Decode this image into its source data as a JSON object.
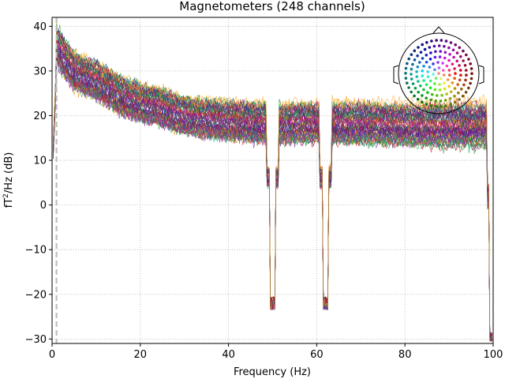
{
  "chart_data": {
    "type": "line",
    "title": "Magnetometers (248 channels)",
    "xlabel": "Frequency (Hz)",
    "ylabel_main": "fT",
    "ylabel_sup": "2",
    "ylabel_rest": "/Hz (dB)",
    "xlim": [
      0,
      100
    ],
    "ylim": [
      -31,
      42
    ],
    "grid": true,
    "x_ticks": [
      0,
      20,
      40,
      60,
      80,
      100
    ],
    "y_ticks": [
      -30,
      -20,
      -10,
      0,
      10,
      20,
      30,
      40
    ],
    "highpass_marker_hz": 1,
    "notch_frequencies_hz": [
      50,
      62,
      100
    ],
    "channel_count": 248,
    "series_profile": {
      "points": [
        [
          0,
          8
        ],
        [
          1,
          36
        ],
        [
          3,
          33
        ],
        [
          5,
          30
        ],
        [
          10,
          28
        ],
        [
          15,
          25
        ],
        [
          20,
          23
        ],
        [
          25,
          22
        ],
        [
          30,
          20
        ],
        [
          40,
          19
        ],
        [
          47,
          18.5
        ],
        [
          60,
          18.5
        ],
        [
          70,
          18.5
        ],
        [
          80,
          18
        ],
        [
          90,
          18
        ],
        [
          98,
          18
        ]
      ],
      "spread_db": 8,
      "notch_min_db": [
        -22,
        -22,
        -30
      ]
    },
    "legend": "sensor-topomap top-right"
  },
  "colors": {
    "background": "#ffffff",
    "grid": "#b0b0b0",
    "marker": "#bdbdbd",
    "palette": [
      "#2ca02c",
      "#1a9850",
      "#00a86b",
      "#e08a00",
      "#d62728",
      "#c2185b",
      "#9c27b0",
      "#7b1fa2",
      "#3f51b5",
      "#1e3a8a",
      "#4a148c",
      "#880e4f",
      "#ad1457",
      "#2e7d32",
      "#f9a825"
    ]
  }
}
